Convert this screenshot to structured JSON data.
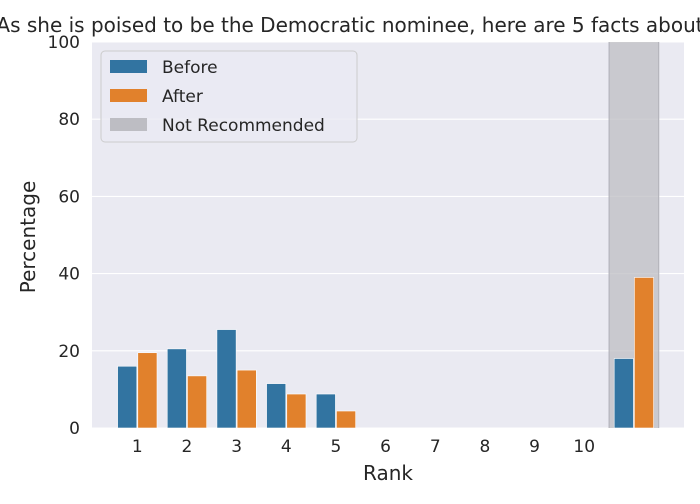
{
  "chart_data": {
    "type": "bar",
    "title": "As she is poised to be the Democratic nominee, here are 5 facts about",
    "xlabel": "Rank",
    "ylabel": "Percentage",
    "ylim": [
      0,
      100
    ],
    "yticks": [
      "0",
      "20",
      "40",
      "60",
      "80",
      "100"
    ],
    "categories": [
      "1",
      "2",
      "3",
      "4",
      "5",
      "6",
      "7",
      "8",
      "9",
      "10",
      ""
    ],
    "series": [
      {
        "name": "Before",
        "color": "#3274a1",
        "values": [
          16,
          20.5,
          25.5,
          11.5,
          8.8,
          0,
          0,
          0,
          0,
          0,
          18
        ]
      },
      {
        "name": "After",
        "color": "#e1812c",
        "values": [
          19.5,
          13.5,
          15,
          8.8,
          4.4,
          0,
          0,
          0,
          0,
          0,
          39
        ]
      }
    ],
    "highlight": {
      "name": "Not Recommended",
      "category_index": 10,
      "color": "#bdbdc3"
    },
    "grid": true,
    "legend_position": "upper-left"
  }
}
